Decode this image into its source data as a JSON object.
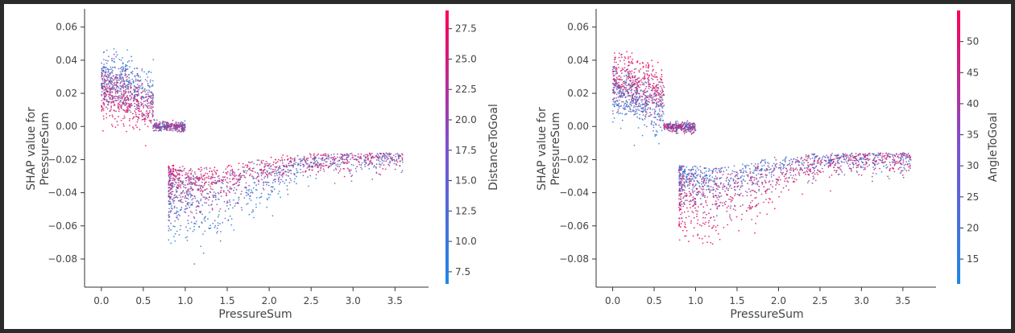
{
  "chart_data": [
    {
      "type": "scatter",
      "title": "",
      "xlabel": "PressureSum",
      "ylabel": "SHAP value for\nPressureSum",
      "xlim": [
        -0.2,
        3.9
      ],
      "ylim": [
        -0.097,
        0.071
      ],
      "xticks": [
        0.0,
        0.5,
        1.0,
        1.5,
        2.0,
        2.5,
        3.0,
        3.5
      ],
      "xtick_labels": [
        "0.0",
        "0.5",
        "1.0",
        "1.5",
        "2.0",
        "2.5",
        "3.0",
        "3.5"
      ],
      "yticks": [
        0.06,
        0.04,
        0.02,
        0.0,
        -0.02,
        -0.04,
        -0.06,
        -0.08
      ],
      "ytick_labels": [
        "0.06",
        "0.04",
        "0.02",
        "0.00",
        "−0.02",
        "−0.04",
        "−0.06",
        "−0.08"
      ],
      "grid": false,
      "color_feature": "DistanceToGoal",
      "colorbar": {
        "label": "DistanceToGoal",
        "range": [
          6.5,
          29.0
        ],
        "ticks": [
          7.5,
          10.0,
          12.5,
          15.0,
          17.5,
          20.0,
          22.5,
          25.0,
          27.5
        ],
        "tick_labels": [
          "7.5",
          "10.0",
          "12.5",
          "15.0",
          "17.5",
          "20.0",
          "22.5",
          "25.0",
          "27.5"
        ],
        "low_color": "#1e88e5",
        "high_color": "#ff0052"
      }
    },
    {
      "type": "scatter",
      "title": "",
      "xlabel": "PressureSum",
      "ylabel": "SHAP value for\nPressureSum",
      "xlim": [
        -0.2,
        3.9
      ],
      "ylim": [
        -0.097,
        0.071
      ],
      "xticks": [
        0.0,
        0.5,
        1.0,
        1.5,
        2.0,
        2.5,
        3.0,
        3.5
      ],
      "xtick_labels": [
        "0.0",
        "0.5",
        "1.0",
        "1.5",
        "2.0",
        "2.5",
        "3.0",
        "3.5"
      ],
      "yticks": [
        0.06,
        0.04,
        0.02,
        0.0,
        -0.02,
        -0.04,
        -0.06,
        -0.08
      ],
      "ytick_labels": [
        "0.06",
        "0.04",
        "0.02",
        "0.00",
        "−0.02",
        "−0.04",
        "−0.06",
        "−0.08"
      ],
      "grid": false,
      "color_feature": "AngleToGoal",
      "colorbar": {
        "label": "AngleToGoal",
        "range": [
          11,
          55
        ],
        "ticks": [
          15,
          20,
          25,
          30,
          35,
          40,
          45,
          50
        ],
        "tick_labels": [
          "15",
          "20",
          "25",
          "30",
          "35",
          "40",
          "45",
          "50"
        ],
        "low_color": "#1e88e5",
        "high_color": "#ff0052"
      }
    }
  ]
}
